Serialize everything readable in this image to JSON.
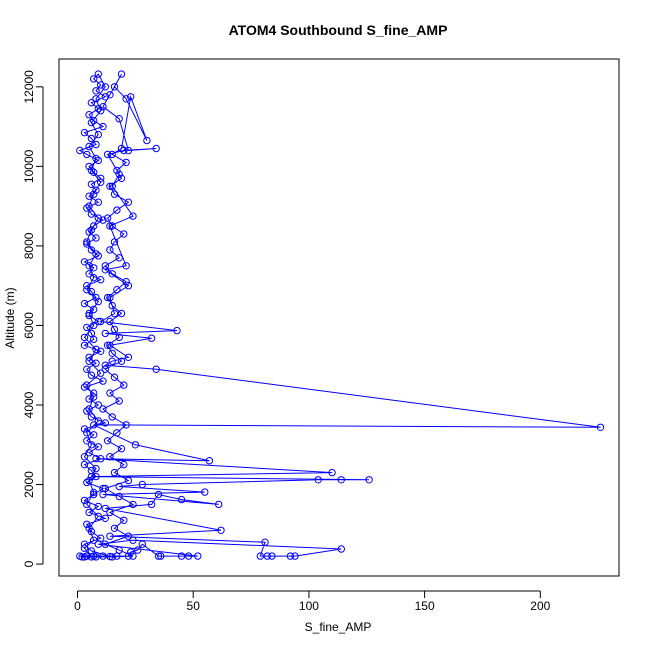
{
  "chart_data": {
    "type": "line",
    "title": "ATOM4 Southbound S_fine_AMP",
    "xlabel": "S_fine_AMP",
    "ylabel": "Altitude (m)",
    "xlim": [
      -8,
      234
    ],
    "ylim": [
      -300,
      12700
    ],
    "xticks": [
      0,
      50,
      100,
      150,
      200
    ],
    "yticks": [
      0,
      2000,
      4000,
      6000,
      8000,
      10000,
      12000
    ],
    "grid": false,
    "color": "#0000ff",
    "series": [
      {
        "points": [
          [
            3,
            180
          ],
          [
            8,
            180
          ],
          [
            14,
            190
          ],
          [
            6,
            330
          ],
          [
            3,
            500
          ],
          [
            10,
            650
          ],
          [
            6,
            820
          ],
          [
            4,
            1000
          ],
          [
            12,
            1150
          ],
          [
            5,
            1300
          ],
          [
            9,
            1450
          ],
          [
            3,
            1600
          ],
          [
            7,
            1750
          ],
          [
            11,
            1900
          ],
          [
            4,
            2050
          ],
          [
            8,
            2200
          ],
          [
            6,
            2350
          ],
          [
            3,
            2500
          ],
          [
            10,
            2650
          ],
          [
            5,
            2800
          ],
          [
            9,
            2950
          ],
          [
            4,
            3100
          ],
          [
            7,
            3250
          ],
          [
            3,
            3400
          ],
          [
            12,
            3550
          ],
          [
            6,
            3700
          ],
          [
            4,
            3850
          ],
          [
            9,
            4000
          ],
          [
            5,
            4150
          ],
          [
            7,
            4300
          ],
          [
            3,
            4450
          ],
          [
            11,
            4600
          ],
          [
            6,
            4750
          ],
          [
            4,
            4900
          ],
          [
            8,
            5050
          ],
          [
            5,
            5200
          ],
          [
            10,
            5350
          ],
          [
            3,
            5500
          ],
          [
            7,
            5650
          ],
          [
            6,
            5800
          ],
          [
            4,
            5950
          ],
          [
            9,
            6100
          ],
          [
            5,
            6250
          ],
          [
            7,
            6400
          ],
          [
            3,
            6550
          ],
          [
            8,
            6700
          ],
          [
            6,
            6850
          ],
          [
            4,
            7000
          ],
          [
            10,
            7150
          ],
          [
            5,
            7300
          ],
          [
            7,
            7450
          ],
          [
            3,
            7600
          ],
          [
            9,
            7750
          ],
          [
            6,
            7900
          ],
          [
            4,
            8050
          ],
          [
            8,
            8200
          ],
          [
            5,
            8350
          ],
          [
            7,
            8500
          ],
          [
            11,
            8650
          ],
          [
            6,
            8800
          ],
          [
            4,
            8950
          ],
          [
            9,
            9100
          ],
          [
            5,
            9250
          ],
          [
            8,
            9400
          ],
          [
            6,
            9550
          ],
          [
            10,
            9700
          ],
          [
            7,
            9850
          ],
          [
            5,
            10000
          ],
          [
            9,
            10150
          ],
          [
            4,
            10300
          ],
          [
            1,
            10400
          ],
          [
            8,
            10550
          ],
          [
            6,
            10700
          ],
          [
            3,
            10850
          ],
          [
            11,
            11000
          ],
          [
            7,
            11150
          ],
          [
            5,
            11300
          ],
          [
            9,
            11450
          ],
          [
            6,
            11600
          ],
          [
            12,
            11750
          ],
          [
            8,
            11900
          ],
          [
            10,
            12050
          ],
          [
            7,
            12200
          ],
          [
            9,
            12320
          ],
          [
            12,
            12000
          ],
          [
            8,
            11700
          ],
          [
            10,
            11400
          ],
          [
            6,
            11100
          ],
          [
            9,
            10800
          ],
          [
            5,
            10500
          ],
          [
            8,
            10200
          ],
          [
            6,
            9900
          ],
          [
            10,
            9600
          ],
          [
            7,
            9300
          ],
          [
            5,
            9000
          ],
          [
            9,
            8700
          ],
          [
            6,
            8400
          ],
          [
            4,
            8100
          ],
          [
            8,
            7800
          ],
          [
            5,
            7500
          ],
          [
            7,
            7200
          ],
          [
            4,
            6900
          ],
          [
            9,
            6600
          ],
          [
            5,
            6300
          ],
          [
            7,
            6000
          ],
          [
            3,
            5700
          ],
          [
            8,
            5400
          ],
          [
            5,
            5100
          ],
          [
            10,
            4800
          ],
          [
            4,
            4500
          ],
          [
            7,
            4200
          ],
          [
            5,
            3900
          ],
          [
            9,
            3600
          ],
          [
            4,
            3300
          ],
          [
            6,
            3000
          ],
          [
            3,
            2700
          ],
          [
            8,
            2400
          ],
          [
            5,
            2100
          ],
          [
            7,
            1800
          ],
          [
            4,
            1500
          ],
          [
            9,
            1200
          ],
          [
            5,
            900
          ],
          [
            7,
            600
          ],
          [
            3,
            400
          ],
          [
            6,
            180
          ],
          [
            2,
            180
          ],
          [
            15,
            180
          ],
          [
            24,
            200
          ],
          [
            18,
            350
          ],
          [
            12,
            500
          ],
          [
            22,
            700
          ],
          [
            16,
            900
          ],
          [
            20,
            1100
          ],
          [
            14,
            1300
          ],
          [
            24,
            1500
          ],
          [
            18,
            1700
          ],
          [
            12,
            1900
          ],
          [
            22,
            2100
          ],
          [
            16,
            2300
          ],
          [
            20,
            2500
          ],
          [
            14,
            2700
          ],
          [
            19,
            2900
          ],
          [
            13,
            3100
          ],
          [
            17,
            3300
          ],
          [
            21,
            3500
          ],
          [
            15,
            3700
          ],
          [
            11,
            3900
          ],
          [
            18,
            4100
          ],
          [
            14,
            4300
          ],
          [
            20,
            4500
          ],
          [
            16,
            4700
          ],
          [
            12,
            4900
          ],
          [
            19,
            5100
          ],
          [
            15,
            5300
          ],
          [
            13,
            5500
          ],
          [
            18,
            5700
          ],
          [
            16,
            5900
          ],
          [
            14,
            6100
          ],
          [
            19,
            6300
          ],
          [
            15,
            6500
          ],
          [
            13,
            6700
          ],
          [
            17,
            6900
          ],
          [
            21,
            7100
          ],
          [
            15,
            7300
          ],
          [
            12,
            7500
          ],
          [
            18,
            7700
          ],
          [
            14,
            7900
          ],
          [
            16,
            8100
          ],
          [
            20,
            8300
          ],
          [
            15,
            8500
          ],
          [
            13,
            8700
          ],
          [
            17,
            8900
          ],
          [
            22,
            9100
          ],
          [
            16,
            9300
          ],
          [
            14,
            9500
          ],
          [
            19,
            9700
          ],
          [
            17,
            9900
          ],
          [
            21,
            10100
          ],
          [
            15,
            10300
          ],
          [
            19,
            10450
          ],
          [
            23,
            11750
          ],
          [
            30,
            10650
          ],
          [
            21,
            11700
          ],
          [
            16,
            12000
          ],
          [
            19,
            12320
          ],
          [
            14,
            11800
          ],
          [
            11,
            11500
          ],
          [
            18,
            11200
          ],
          [
            22,
            10400
          ],
          [
            34,
            10450
          ],
          [
            20,
            10400
          ],
          [
            13,
            10300
          ],
          [
            18,
            9800
          ],
          [
            15,
            9500
          ],
          [
            24,
            8750
          ],
          [
            14,
            8500
          ],
          [
            21,
            7500
          ],
          [
            12,
            7400
          ],
          [
            22,
            7000
          ],
          [
            14,
            6700
          ],
          [
            16,
            6300
          ],
          [
            10,
            6100
          ],
          [
            43,
            5870
          ],
          [
            12,
            5800
          ],
          [
            32,
            5680
          ],
          [
            14,
            5500
          ],
          [
            22,
            5200
          ],
          [
            15,
            5100
          ],
          [
            12,
            5000
          ],
          [
            34,
            4900
          ],
          [
            226,
            3440
          ],
          [
            7,
            3500
          ],
          [
            25,
            3000
          ],
          [
            57,
            2600
          ],
          [
            8,
            2650
          ],
          [
            110,
            2300
          ],
          [
            6,
            2200
          ],
          [
            126,
            2120
          ],
          [
            114,
            2120
          ],
          [
            104,
            2120
          ],
          [
            28,
            2000
          ],
          [
            18,
            1950
          ],
          [
            55,
            1810
          ],
          [
            11,
            1750
          ],
          [
            61,
            1500
          ],
          [
            45,
            1620
          ],
          [
            35,
            1750
          ],
          [
            32,
            1500
          ],
          [
            12,
            1400
          ],
          [
            62,
            850
          ],
          [
            14,
            700
          ],
          [
            81,
            550
          ],
          [
            79,
            200
          ],
          [
            82,
            200
          ],
          [
            84,
            200
          ],
          [
            92,
            200
          ],
          [
            94,
            200
          ],
          [
            114,
            380
          ],
          [
            24,
            600
          ],
          [
            9,
            500
          ],
          [
            52,
            200
          ],
          [
            48,
            200
          ],
          [
            45,
            200
          ],
          [
            36,
            200
          ],
          [
            35,
            200
          ],
          [
            28,
            500
          ],
          [
            26,
            350
          ],
          [
            23,
            300
          ],
          [
            22,
            200
          ],
          [
            17,
            200
          ],
          [
            11,
            200
          ],
          [
            7,
            200
          ],
          [
            4,
            200
          ],
          [
            1,
            200
          ]
        ]
      }
    ]
  }
}
